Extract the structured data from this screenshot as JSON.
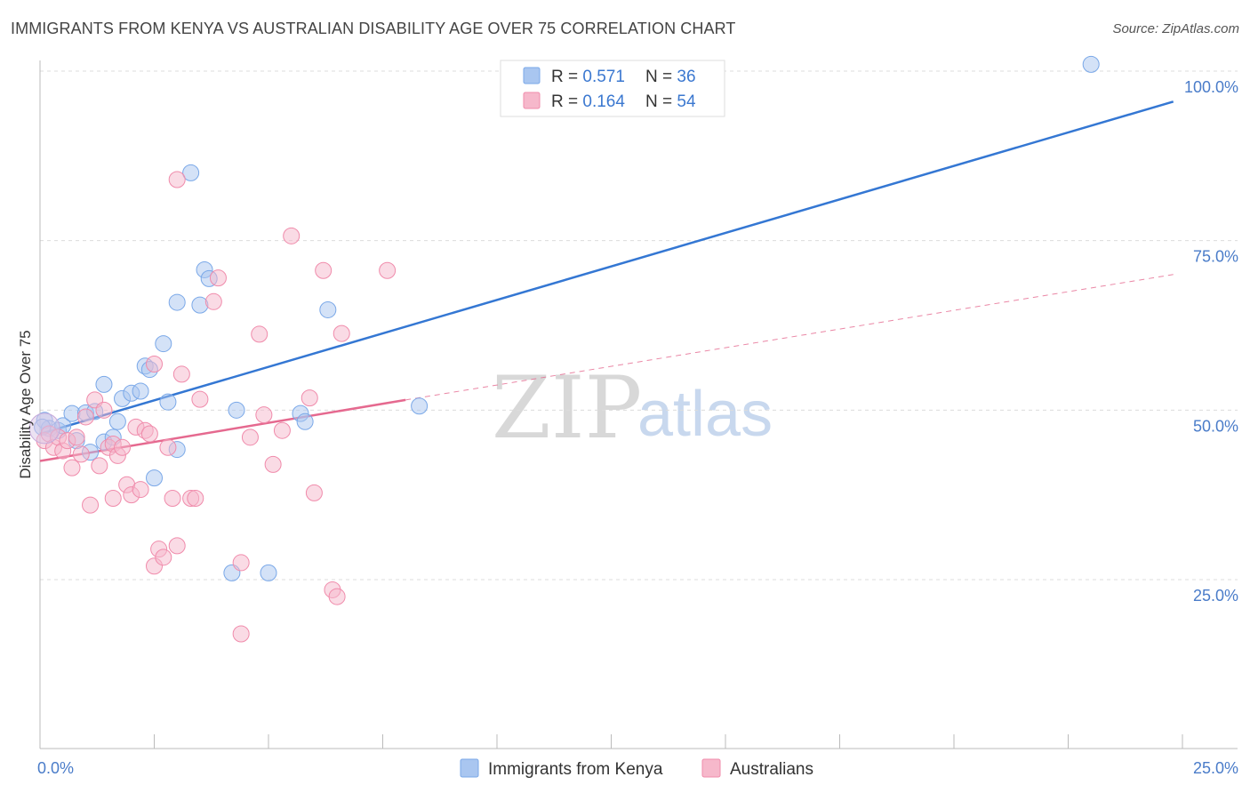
{
  "header": {
    "title": "IMMIGRANTS FROM KENYA VS AUSTRALIAN DISABILITY AGE OVER 75 CORRELATION CHART",
    "source": "Source: ZipAtlas.com"
  },
  "watermark": {
    "zip": "ZIP",
    "atlas": "atlas"
  },
  "legend": {
    "rows": [
      {
        "r_label": "R = ",
        "r_value": "0.571",
        "n_label": "N = ",
        "n_value": "36",
        "color": "#a9c6f0"
      },
      {
        "r_label": "R = ",
        "r_value": "0.164",
        "n_label": "N = ",
        "n_value": "54",
        "color": "#f6b8cb"
      }
    ]
  },
  "bottom_legend": [
    {
      "label": "Immigrants from Kenya",
      "color": "#a9c6f0"
    },
    {
      "label": "Australians",
      "color": "#f6b8cb"
    }
  ],
  "chart_data": {
    "type": "scatter",
    "title": "IMMIGRANTS FROM KENYA VS AUSTRALIAN DISABILITY AGE OVER 75 CORRELATION CHART",
    "xlabel": "",
    "ylabel": "Disability Age Over 75",
    "xlim": [
      0,
      25
    ],
    "ylim": [
      0,
      102
    ],
    "x_tick_labels": [
      {
        "value": 0,
        "label": "0.0%"
      },
      {
        "value": 25,
        "label": "25.0%"
      }
    ],
    "y_tick_labels": [
      {
        "value": 25,
        "label": "25.0%"
      },
      {
        "value": 50,
        "label": "50.0%"
      },
      {
        "value": 75,
        "label": "75.0%"
      },
      {
        "value": 100,
        "label": "100.0%"
      }
    ],
    "grid": true,
    "legend_position": "top-center",
    "series": [
      {
        "name": "Immigrants from Kenya",
        "color": "#7aa8e8",
        "fill": "#a9c6f0",
        "trend": {
          "x": [
            0,
            24.8
          ],
          "y": [
            46.5,
            95.5
          ],
          "style": "solid",
          "color": "#3477d3"
        },
        "points": [
          [
            0.1,
            48.5
          ],
          [
            0.2,
            47.3
          ],
          [
            0.4,
            47.0
          ],
          [
            0.5,
            47.7
          ],
          [
            0.7,
            49.5
          ],
          [
            0.8,
            45.5
          ],
          [
            1.0,
            49.6
          ],
          [
            1.1,
            43.8
          ],
          [
            1.2,
            49.8
          ],
          [
            1.4,
            53.8
          ],
          [
            1.4,
            45.3
          ],
          [
            1.6,
            46.0
          ],
          [
            1.7,
            48.3
          ],
          [
            1.8,
            51.7
          ],
          [
            2.0,
            52.5
          ],
          [
            2.2,
            52.8
          ],
          [
            2.3,
            56.5
          ],
          [
            2.4,
            56.0
          ],
          [
            2.5,
            40.0
          ],
          [
            2.7,
            59.8
          ],
          [
            2.8,
            51.2
          ],
          [
            3.0,
            65.9
          ],
          [
            3.0,
            44.2
          ],
          [
            3.3,
            85.0
          ],
          [
            3.5,
            65.5
          ],
          [
            3.6,
            70.7
          ],
          [
            3.7,
            69.4
          ],
          [
            4.2,
            26.0
          ],
          [
            4.3,
            50.0
          ],
          [
            5.0,
            26.0
          ],
          [
            5.7,
            49.5
          ],
          [
            5.8,
            48.3
          ],
          [
            6.3,
            64.8
          ],
          [
            8.3,
            50.6
          ],
          [
            23.0,
            101.0
          ],
          [
            0.05,
            47.5
          ]
        ]
      },
      {
        "name": "Australians",
        "color": "#f08bab",
        "fill": "#f6b8cb",
        "trend": {
          "x": [
            0,
            8.0
          ],
          "y": [
            42.5,
            51.5
          ],
          "style": "solid",
          "color": "#e5698f"
        },
        "trend_ext": {
          "x": [
            8.0,
            24.8
          ],
          "y": [
            51.5,
            70.0
          ],
          "style": "dashed",
          "color": "#e5698f"
        },
        "points": [
          [
            0.1,
            45.5
          ],
          [
            0.2,
            46.5
          ],
          [
            0.3,
            44.5
          ],
          [
            0.4,
            46.0
          ],
          [
            0.5,
            44.0
          ],
          [
            0.6,
            45.5
          ],
          [
            0.7,
            41.5
          ],
          [
            0.8,
            46.0
          ],
          [
            0.9,
            43.5
          ],
          [
            1.0,
            49.0
          ],
          [
            1.1,
            36.0
          ],
          [
            1.2,
            51.5
          ],
          [
            1.3,
            41.8
          ],
          [
            1.4,
            50.0
          ],
          [
            1.5,
            44.5
          ],
          [
            1.6,
            45.0
          ],
          [
            1.6,
            37.0
          ],
          [
            1.7,
            43.3
          ],
          [
            1.8,
            44.5
          ],
          [
            1.9,
            39.0
          ],
          [
            2.0,
            37.5
          ],
          [
            2.1,
            47.5
          ],
          [
            2.2,
            38.3
          ],
          [
            2.3,
            47.0
          ],
          [
            2.4,
            46.5
          ],
          [
            2.5,
            56.8
          ],
          [
            2.5,
            27.0
          ],
          [
            2.6,
            29.5
          ],
          [
            2.7,
            28.3
          ],
          [
            2.8,
            44.5
          ],
          [
            2.9,
            37.0
          ],
          [
            3.0,
            30.0
          ],
          [
            3.0,
            84.0
          ],
          [
            3.1,
            55.3
          ],
          [
            3.3,
            37.0
          ],
          [
            3.4,
            37.0
          ],
          [
            3.5,
            51.6
          ],
          [
            3.8,
            66.0
          ],
          [
            3.9,
            69.5
          ],
          [
            4.4,
            27.5
          ],
          [
            4.4,
            17.0
          ],
          [
            4.6,
            46.0
          ],
          [
            4.8,
            61.2
          ],
          [
            4.9,
            49.3
          ],
          [
            5.1,
            42.0
          ],
          [
            5.3,
            47.0
          ],
          [
            5.5,
            75.7
          ],
          [
            5.9,
            51.8
          ],
          [
            6.0,
            37.8
          ],
          [
            6.2,
            70.6
          ],
          [
            6.4,
            23.5
          ],
          [
            6.5,
            22.5
          ],
          [
            6.6,
            61.3
          ],
          [
            7.6,
            70.6
          ]
        ]
      }
    ]
  }
}
